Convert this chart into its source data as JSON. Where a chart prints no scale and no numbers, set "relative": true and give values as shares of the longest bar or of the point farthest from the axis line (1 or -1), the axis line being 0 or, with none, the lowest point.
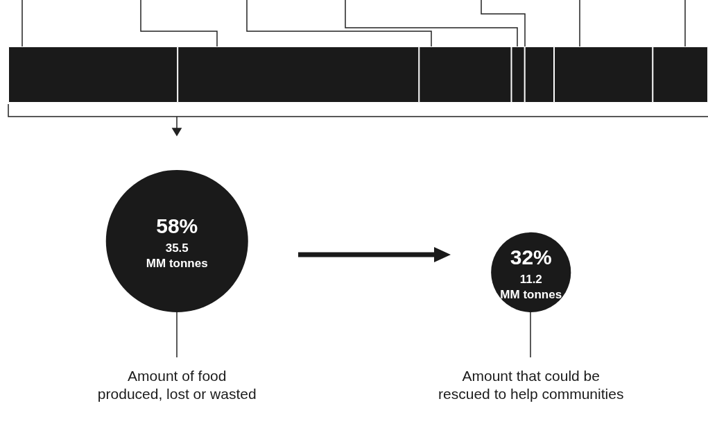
{
  "chart_data": [
    {
      "type": "bar",
      "orientation": "horizontal",
      "stacked": true,
      "relative": true,
      "categories": [
        null
      ],
      "series": [
        {
          "color": "#1a1a1a",
          "values": [
            0.242
          ]
        },
        {
          "color": "#1a1a1a",
          "values": [
            0.345
          ]
        },
        {
          "color": "#1a1a1a",
          "values": [
            0.132
          ]
        },
        {
          "color": "#1a1a1a",
          "values": [
            0.019
          ]
        },
        {
          "color": "#1a1a1a",
          "values": [
            0.042
          ]
        },
        {
          "color": "#1a1a1a",
          "values": [
            0.141
          ]
        },
        {
          "color": "#1a1a1a",
          "values": [
            0.079
          ]
        }
      ]
    },
    {
      "type": "other",
      "categories": [
        "Amount of food\nproduced, lost or wasted",
        "Amount that could be\nrescued to help communities"
      ],
      "values": [
        35.5,
        11.2
      ],
      "color": "#1a1a1a",
      "value_labels": [
        "58%\n35.5\nMM tonnes",
        "32%\n11.2\nMM tonnes"
      ]
    }
  ]
}
